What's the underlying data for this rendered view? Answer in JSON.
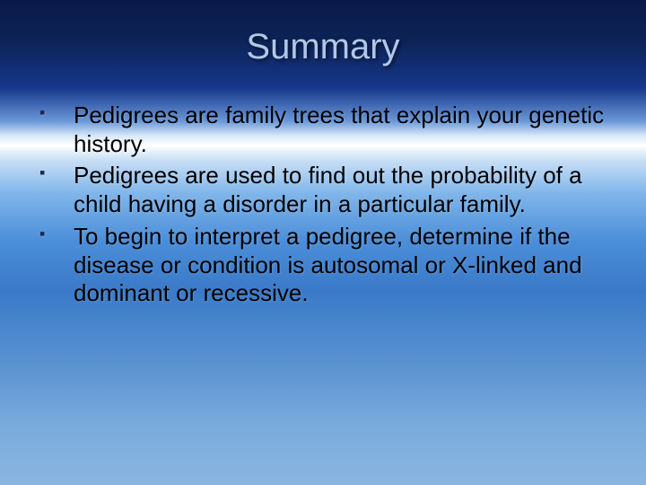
{
  "slide": {
    "title": "Summary",
    "title_color": "#b0c8e8",
    "title_fontsize": 40,
    "body_fontsize": 26,
    "body_color": "#000000",
    "bullet_marker_color": "#1a2a4a",
    "background_gradient": [
      "#0a1a4a",
      "#0d2255",
      "#15378a",
      "#6a98d8",
      "#d8e8f8",
      "#ffffff",
      "#c8dff5",
      "#7fb5ea",
      "#4a8dd8",
      "#3a7ac8",
      "#5a92d0",
      "#7aabdc",
      "#8ab5e0"
    ],
    "bullets": [
      "Pedigrees are family trees that explain your genetic history.",
      "Pedigrees are used to find out the probability of a child having a disorder in a particular family.",
      "To begin to interpret a pedigree, determine if the disease or condition is autosomal or X-linked and dominant or recessive."
    ]
  }
}
